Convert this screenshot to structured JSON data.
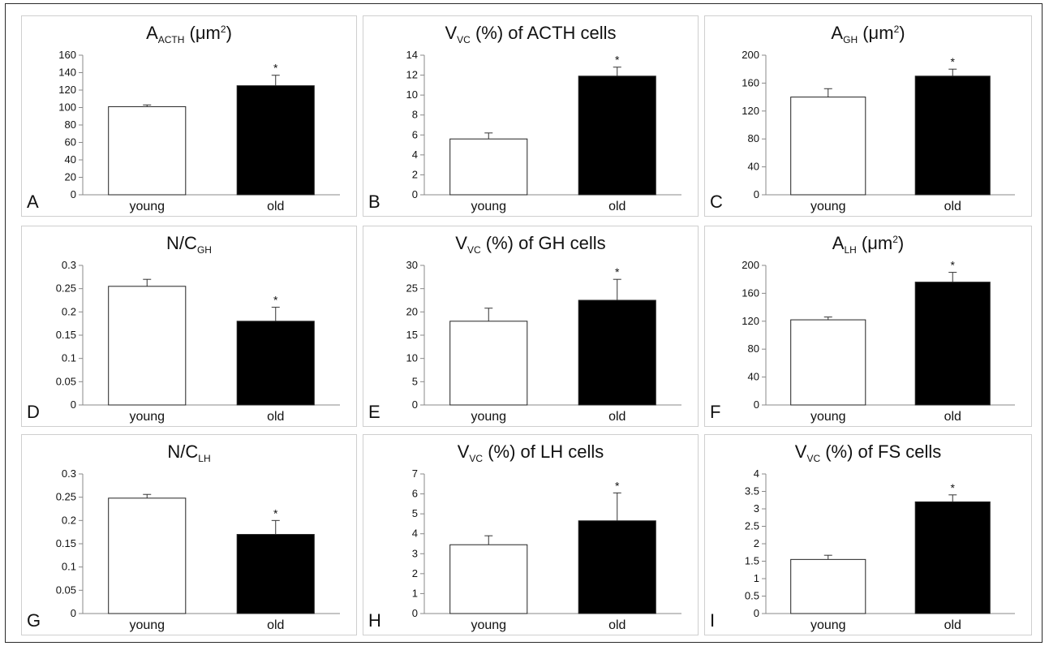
{
  "charts": [
    {
      "id": "A",
      "letter": "A",
      "title_main": "A",
      "title_sub": "ACTH",
      "title_rest": " (μm",
      "title_sup": "2",
      "title_end": ")"
    },
    {
      "id": "B",
      "letter": "B",
      "title_main": "V",
      "title_sub": "VC",
      "title_rest": " (%) of ACTH cells",
      "title_sup": "",
      "title_end": ""
    },
    {
      "id": "C",
      "letter": "C",
      "title_main": "A",
      "title_sub": "GH",
      "title_rest": " (μm",
      "title_sup": "2",
      "title_end": ")"
    },
    {
      "id": "D",
      "letter": "D",
      "title_main": "N/C",
      "title_sub": "GH",
      "title_rest": "",
      "title_sup": "",
      "title_end": ""
    },
    {
      "id": "E",
      "letter": "E",
      "title_main": "V",
      "title_sub": "VC",
      "title_rest": " (%) of GH cells",
      "title_sup": "",
      "title_end": ""
    },
    {
      "id": "F",
      "letter": "F",
      "title_main": "A",
      "title_sub": "LH",
      "title_rest": " (μm",
      "title_sup": "2",
      "title_end": ")"
    },
    {
      "id": "G",
      "letter": "G",
      "title_main": "N/C",
      "title_sub": "LH",
      "title_rest": "",
      "title_sup": "",
      "title_end": ""
    },
    {
      "id": "H",
      "letter": "H",
      "title_main": "V",
      "title_sub": "VC",
      "title_rest": " (%) of LH cells",
      "title_sup": "",
      "title_end": ""
    },
    {
      "id": "I",
      "letter": "I",
      "title_main": "V",
      "title_sub": "VC",
      "title_rest": " (%) of FS cells",
      "title_sup": "",
      "title_end": ""
    }
  ],
  "colors": {
    "young": "#ffffff",
    "old": "#000000",
    "axis": "#888888",
    "text": "#111111"
  },
  "chart_data": [
    {
      "type": "bar",
      "categories": [
        "young",
        "old"
      ],
      "values": [
        101,
        125
      ],
      "errors": [
        2,
        12
      ],
      "significant": [
        false,
        true
      ],
      "ylim": [
        0,
        160
      ],
      "yticks": [
        "0",
        "20",
        "40",
        "60",
        "80",
        "100",
        "120",
        "140",
        "160"
      ],
      "ytick_values": [
        0,
        20,
        40,
        60,
        80,
        100,
        120,
        140,
        160
      ]
    },
    {
      "type": "bar",
      "categories": [
        "young",
        "old"
      ],
      "values": [
        5.6,
        11.9
      ],
      "errors": [
        0.6,
        0.9
      ],
      "significant": [
        false,
        true
      ],
      "ylim": [
        0,
        14
      ],
      "yticks": [
        "0",
        "2",
        "4",
        "6",
        "8",
        "10",
        "12",
        "14"
      ],
      "ytick_values": [
        0,
        2,
        4,
        6,
        8,
        10,
        12,
        14
      ]
    },
    {
      "type": "bar",
      "categories": [
        "young",
        "old"
      ],
      "values": [
        140,
        170
      ],
      "errors": [
        12,
        10
      ],
      "significant": [
        false,
        true
      ],
      "ylim": [
        0,
        200
      ],
      "yticks": [
        "0",
        "40",
        "80",
        "120",
        "160",
        "200"
      ],
      "ytick_values": [
        0,
        40,
        80,
        120,
        160,
        200
      ]
    },
    {
      "type": "bar",
      "categories": [
        "young",
        "old"
      ],
      "values": [
        0.255,
        0.18
      ],
      "errors": [
        0.015,
        0.03
      ],
      "significant": [
        false,
        true
      ],
      "ylim": [
        0,
        0.3
      ],
      "yticks": [
        "0",
        "0.05",
        "0.1",
        "0.15",
        "0.2",
        "0.25",
        "0.3"
      ],
      "ytick_values": [
        0,
        0.05,
        0.1,
        0.15,
        0.2,
        0.25,
        0.3
      ]
    },
    {
      "type": "bar",
      "categories": [
        "young",
        "old"
      ],
      "values": [
        18,
        22.5
      ],
      "errors": [
        2.8,
        4.5
      ],
      "significant": [
        false,
        true
      ],
      "ylim": [
        0,
        30
      ],
      "yticks": [
        "0",
        "5",
        "10",
        "15",
        "20",
        "25",
        "30"
      ],
      "ytick_values": [
        0,
        5,
        10,
        15,
        20,
        25,
        30
      ]
    },
    {
      "type": "bar",
      "categories": [
        "young",
        "old"
      ],
      "values": [
        122,
        176
      ],
      "errors": [
        4,
        14
      ],
      "significant": [
        false,
        true
      ],
      "ylim": [
        0,
        200
      ],
      "yticks": [
        "0",
        "40",
        "80",
        "120",
        "160",
        "200"
      ],
      "ytick_values": [
        0,
        40,
        80,
        120,
        160,
        200
      ]
    },
    {
      "type": "bar",
      "categories": [
        "young",
        "old"
      ],
      "values": [
        0.248,
        0.17
      ],
      "errors": [
        0.008,
        0.03
      ],
      "significant": [
        false,
        true
      ],
      "ylim": [
        0,
        0.3
      ],
      "yticks": [
        "0",
        "0.05",
        "0.1",
        "0.15",
        "0.2",
        "0.25",
        "0.3"
      ],
      "ytick_values": [
        0,
        0.05,
        0.1,
        0.15,
        0.2,
        0.25,
        0.3
      ]
    },
    {
      "type": "bar",
      "categories": [
        "young",
        "old"
      ],
      "values": [
        3.45,
        4.65
      ],
      "errors": [
        0.45,
        1.4
      ],
      "significant": [
        false,
        true
      ],
      "ylim": [
        0,
        7
      ],
      "yticks": [
        "0",
        "1",
        "2",
        "3",
        "4",
        "5",
        "6",
        "7"
      ],
      "ytick_values": [
        0,
        1,
        2,
        3,
        4,
        5,
        6,
        7
      ]
    },
    {
      "type": "bar",
      "categories": [
        "young",
        "old"
      ],
      "values": [
        1.55,
        3.2
      ],
      "errors": [
        0.12,
        0.2
      ],
      "significant": [
        false,
        true
      ],
      "ylim": [
        0,
        4
      ],
      "yticks": [
        "0",
        "0.5",
        "1",
        "1.5",
        "2",
        "2.5",
        "3",
        "3.5",
        "4"
      ],
      "ytick_values": [
        0,
        0.5,
        1,
        1.5,
        2,
        2.5,
        3,
        3.5,
        4
      ]
    }
  ]
}
